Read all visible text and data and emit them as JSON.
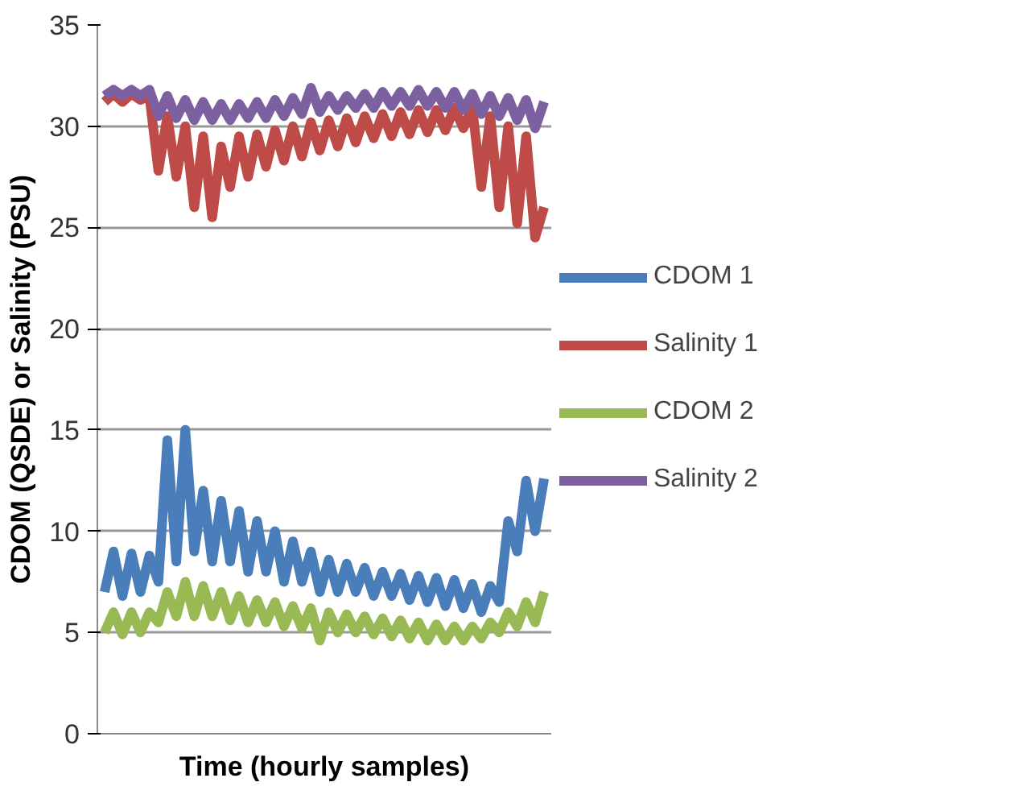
{
  "chart_data": {
    "type": "line",
    "xlabel": "Time (hourly samples)",
    "ylabel": "CDOM (QSDE) or Salinity (PSU)",
    "categories": [
      null,
      null,
      null,
      null,
      null,
      null,
      null,
      null,
      null,
      null,
      null,
      null,
      null,
      null,
      null,
      null,
      null,
      null,
      null,
      null,
      null,
      null,
      null,
      null,
      null,
      null,
      null,
      null,
      null,
      null,
      null,
      null,
      null,
      null,
      null,
      null,
      null,
      null,
      null,
      null,
      null,
      null,
      null,
      null,
      null,
      null,
      null,
      null,
      null,
      null
    ],
    "ylim": [
      0,
      35
    ],
    "yticks": [
      0,
      5,
      10,
      15,
      20,
      25,
      30,
      35
    ],
    "grid": "y",
    "legend": "right",
    "tick_labels": "y",
    "series": [
      {
        "name": "CDOM 1",
        "color": "#4a7ebb",
        "values": [
          7,
          9,
          6.8,
          8.9,
          7,
          8.8,
          7.5,
          14.5,
          8.5,
          15,
          9,
          12,
          8.5,
          11.5,
          8.5,
          11,
          8,
          10.5,
          8,
          10,
          7.5,
          9.5,
          7.5,
          9,
          7,
          8.6,
          7,
          8.4,
          7,
          8.2,
          6.8,
          8,
          6.8,
          7.9,
          6.6,
          7.8,
          6.5,
          7.7,
          6.3,
          7.6,
          6.2,
          7.4,
          6,
          7.3,
          6.5,
          10.5,
          9,
          12.5,
          10,
          12.6
        ]
      },
      {
        "name": "Salinity 1",
        "color": "#be4b48",
        "values": [
          31.2,
          31.6,
          31.2,
          31.6,
          31.3,
          31.5,
          27.8,
          30.5,
          27.5,
          30,
          26,
          29.5,
          25.5,
          29,
          27,
          29.5,
          27.5,
          29.6,
          28,
          29.8,
          28.3,
          30,
          28.5,
          30.2,
          28.8,
          30.3,
          29,
          30.4,
          29.2,
          30.5,
          29.4,
          30.6,
          29.5,
          30.7,
          29.6,
          30.8,
          29.7,
          30.8,
          29.8,
          30.9,
          29.9,
          30.9,
          27,
          30.5,
          26,
          30,
          25.2,
          29.5,
          24.5,
          26
        ]
      },
      {
        "name": "CDOM 2",
        "color": "#98b954",
        "values": [
          5,
          6,
          4.9,
          6,
          5,
          6,
          5.5,
          7,
          5.8,
          7.5,
          5.8,
          7.3,
          5.8,
          7,
          5.6,
          6.8,
          5.5,
          6.6,
          5.5,
          6.5,
          5.3,
          6.3,
          5.2,
          6.2,
          4.6,
          6,
          5,
          5.9,
          5,
          5.8,
          4.9,
          5.7,
          4.8,
          5.6,
          4.7,
          5.5,
          4.6,
          5.4,
          4.6,
          5.3,
          4.6,
          5.3,
          4.7,
          5.5,
          5,
          6,
          5.3,
          6.5,
          5.5,
          7
        ]
      },
      {
        "name": "Salinity 2",
        "color": "#7d60a0",
        "values": [
          31.5,
          31.8,
          31.5,
          31.8,
          31.5,
          31.8,
          30.5,
          31.5,
          30.4,
          31.3,
          30.3,
          31.2,
          30.3,
          31.1,
          30.3,
          31.1,
          30.4,
          31.2,
          30.4,
          31.3,
          30.5,
          31.4,
          30.6,
          31.9,
          30.7,
          31.5,
          30.8,
          31.5,
          30.9,
          31.6,
          30.9,
          31.7,
          31,
          31.7,
          31,
          31.8,
          31,
          31.7,
          30.9,
          31.7,
          30.8,
          31.6,
          30.6,
          31.5,
          30.5,
          31.4,
          30.3,
          31.3,
          29.9,
          31.2
        ]
      }
    ]
  }
}
